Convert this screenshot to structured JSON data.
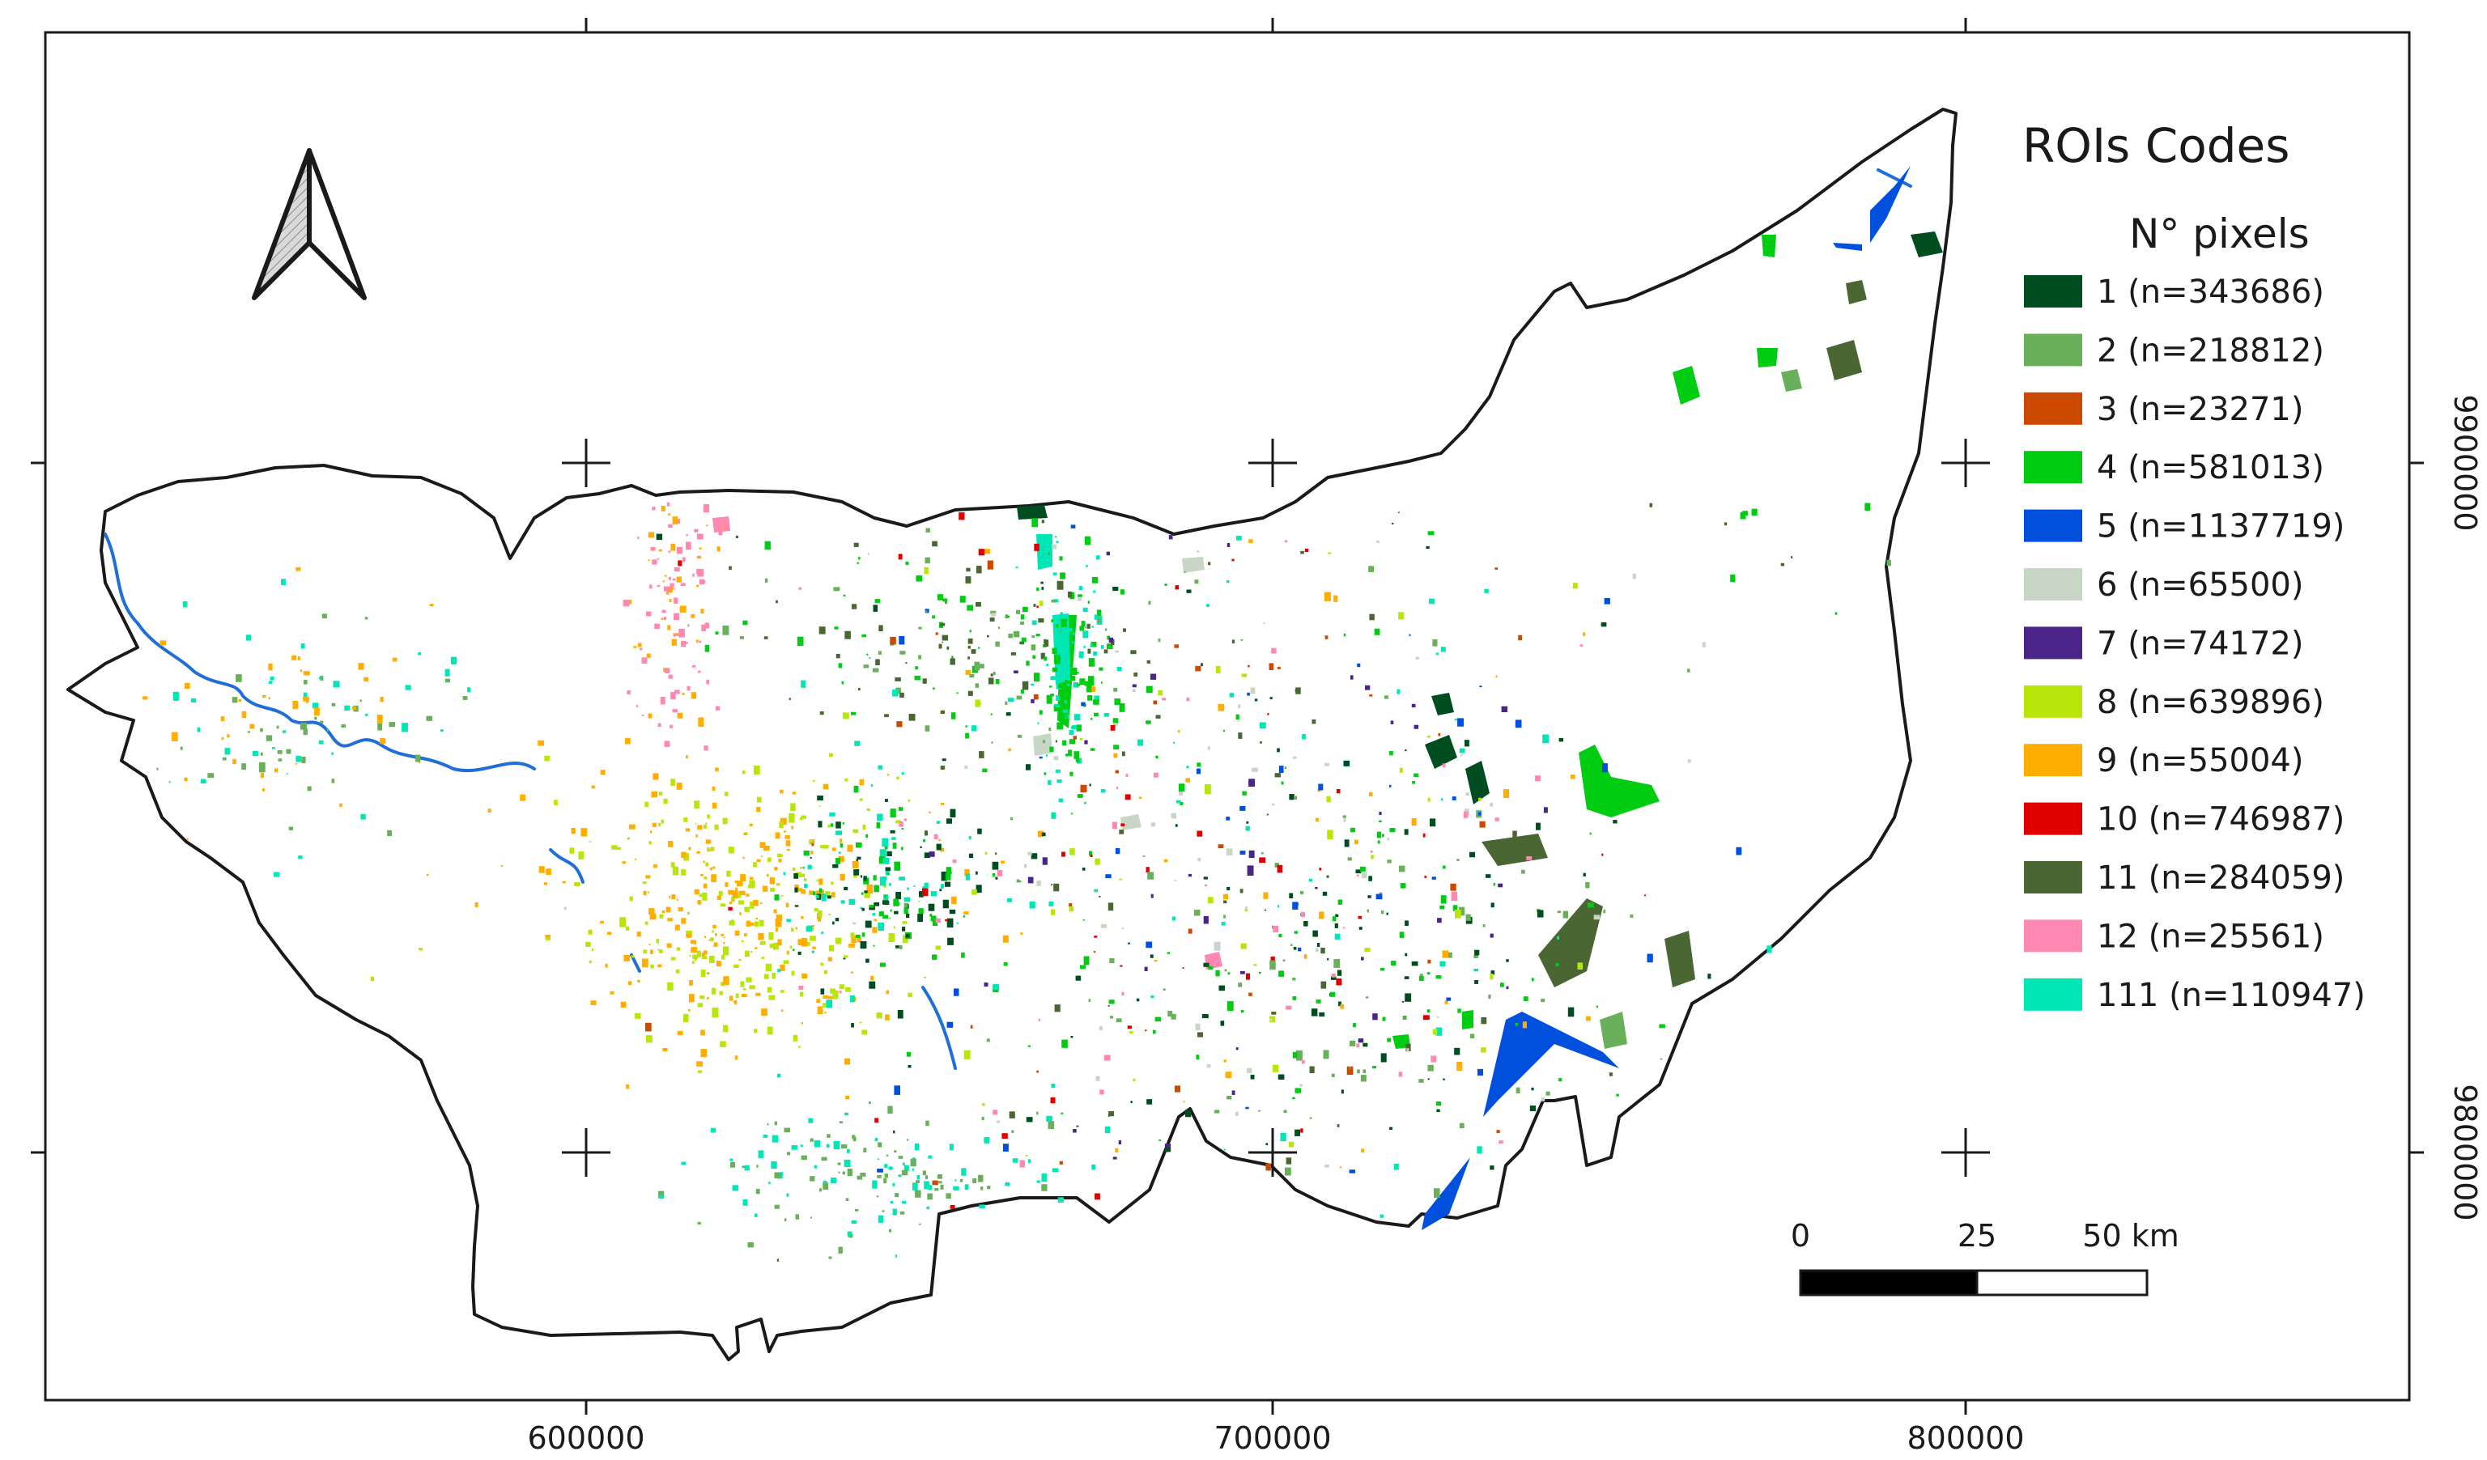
{
  "legend": {
    "title": "ROIs Codes",
    "subtitle": "N° pixels",
    "items": [
      {
        "code": "1",
        "label": "1 (n=343686)",
        "pixels": 343686,
        "color": "#004d1f"
      },
      {
        "code": "2",
        "label": "2 (n=218812)",
        "pixels": 218812,
        "color": "#6aaf5a"
      },
      {
        "code": "3",
        "label": "3 (n=23271)",
        "pixels": 23271,
        "color": "#cc4a00"
      },
      {
        "code": "4",
        "label": "4 (n=581013)",
        "pixels": 581013,
        "color": "#00cc11"
      },
      {
        "code": "5",
        "label": "5 (n=1137719)",
        "pixels": 1137719,
        "color": "#0050dd"
      },
      {
        "code": "6",
        "label": "6 (n=65500)",
        "pixels": 65500,
        "color": "#c8d6c6"
      },
      {
        "code": "7",
        "label": "7 (n=74172)",
        "pixels": 74172,
        "color": "#4a2488"
      },
      {
        "code": "8",
        "label": "8 (n=639896)",
        "pixels": 639896,
        "color": "#b9e60a"
      },
      {
        "code": "9",
        "label": "9 (n=55004)",
        "pixels": 55004,
        "color": "#ffae00"
      },
      {
        "code": "10",
        "label": "10 (n=746987)",
        "pixels": 746987,
        "color": "#e00000"
      },
      {
        "code": "11",
        "label": "11 (n=284059)",
        "pixels": 284059,
        "color": "#4a6633"
      },
      {
        "code": "12",
        "label": "12 (n=25561)",
        "pixels": 25561,
        "color": "#ff88b2"
      },
      {
        "code": "111",
        "label": "111 (n=110947)",
        "pixels": 110947,
        "color": "#00e6b5"
      }
    ]
  },
  "axes": {
    "x_ticks": [
      "600000",
      "700000",
      "800000"
    ],
    "y_ticks": [
      "9900000",
      "9800000"
    ]
  },
  "scale_bar": {
    "labels": [
      "0",
      "25",
      "50 km"
    ]
  },
  "colors": {
    "boundary": "#1a1a1a",
    "river": "#1f6fd6",
    "north_arrow_fill": "#c9c9c9"
  }
}
